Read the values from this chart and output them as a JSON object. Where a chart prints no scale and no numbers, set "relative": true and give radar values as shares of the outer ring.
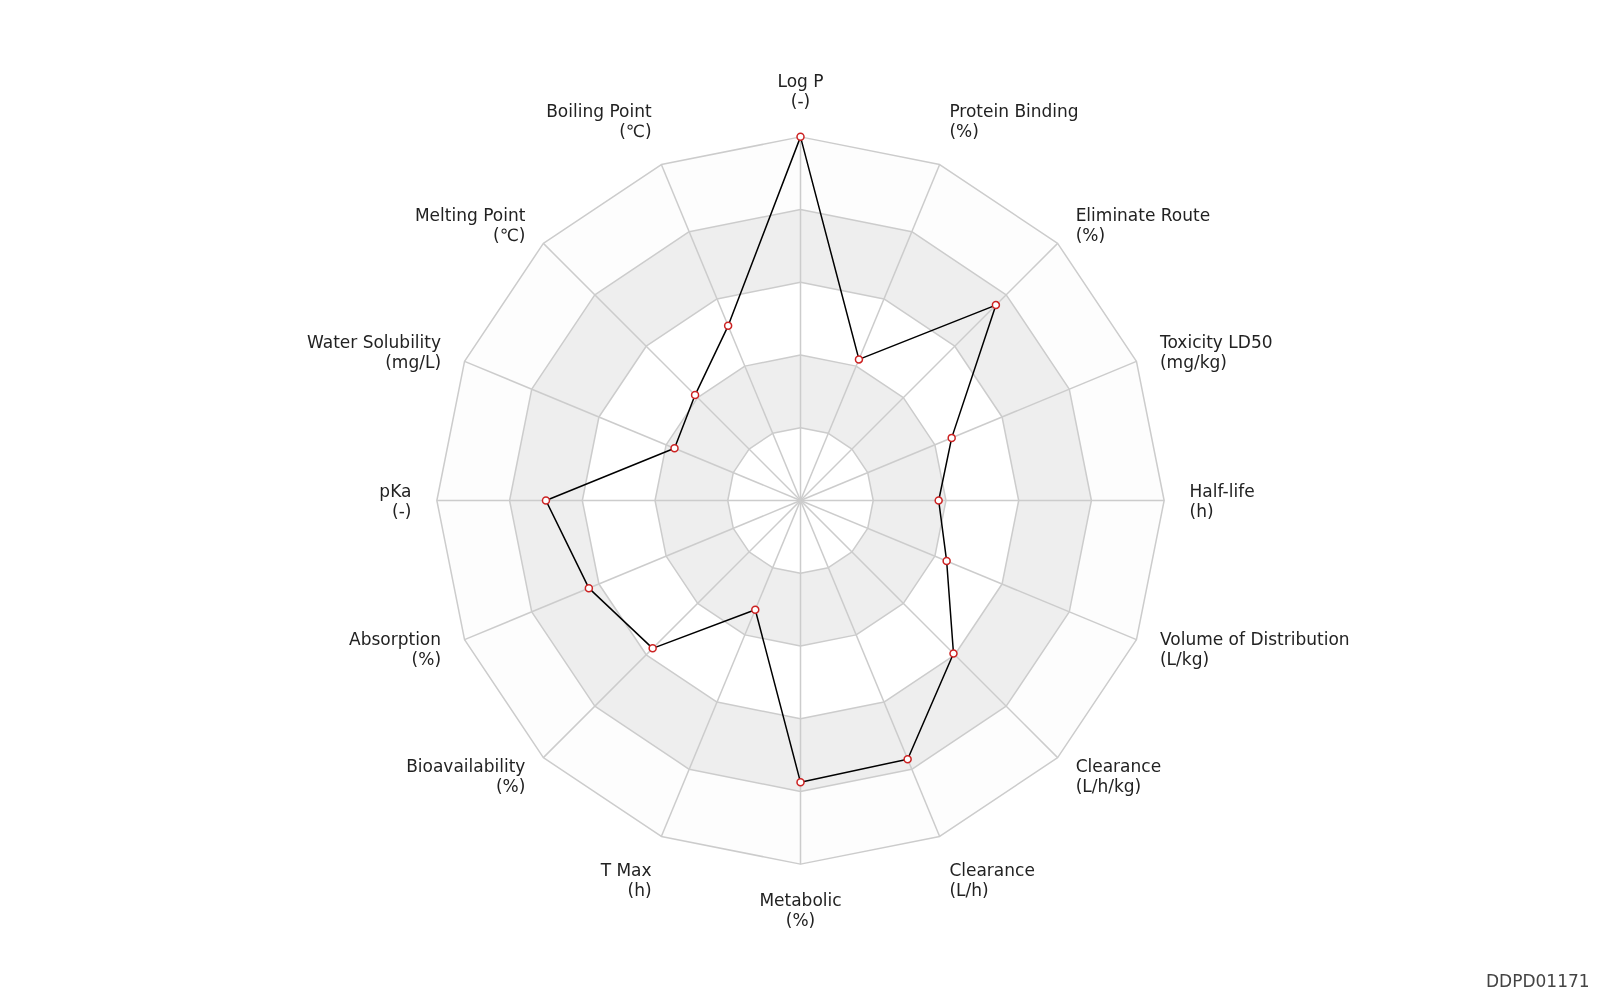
{
  "chart_data": {
    "type": "radar",
    "relative": true,
    "grid": true,
    "marker": "circle",
    "categories": [
      "Log P\n(-)",
      "Protein Binding\n(%)",
      "Eliminate Route\n(%)",
      "Toxicity LD50\n(mg/kg)",
      "Half-life\n(h)",
      "Volume of Distribution\n(L/kg)",
      "Clearance\n(L/h/kg)",
      "Clearance\n(L/h)",
      "Metabolic\n(%)",
      "T Max\n(h)",
      "Bioavailability\n(%)",
      "Absorption\n(%)",
      "pKa\n(-)",
      "Water Solubility\n(mg/L)",
      "Melting Point\n(℃)",
      "Boiling Point\n(℃)"
    ],
    "series": [
      {
        "color": "#000000",
        "values": [
          1.0,
          0.42,
          0.76,
          0.45,
          0.38,
          0.435,
          0.595,
          0.77,
          0.775,
          0.325,
          0.575,
          0.63,
          0.7,
          0.375,
          0.41,
          0.52
        ]
      }
    ],
    "annotations": [
      "DDPD01171"
    ]
  }
}
